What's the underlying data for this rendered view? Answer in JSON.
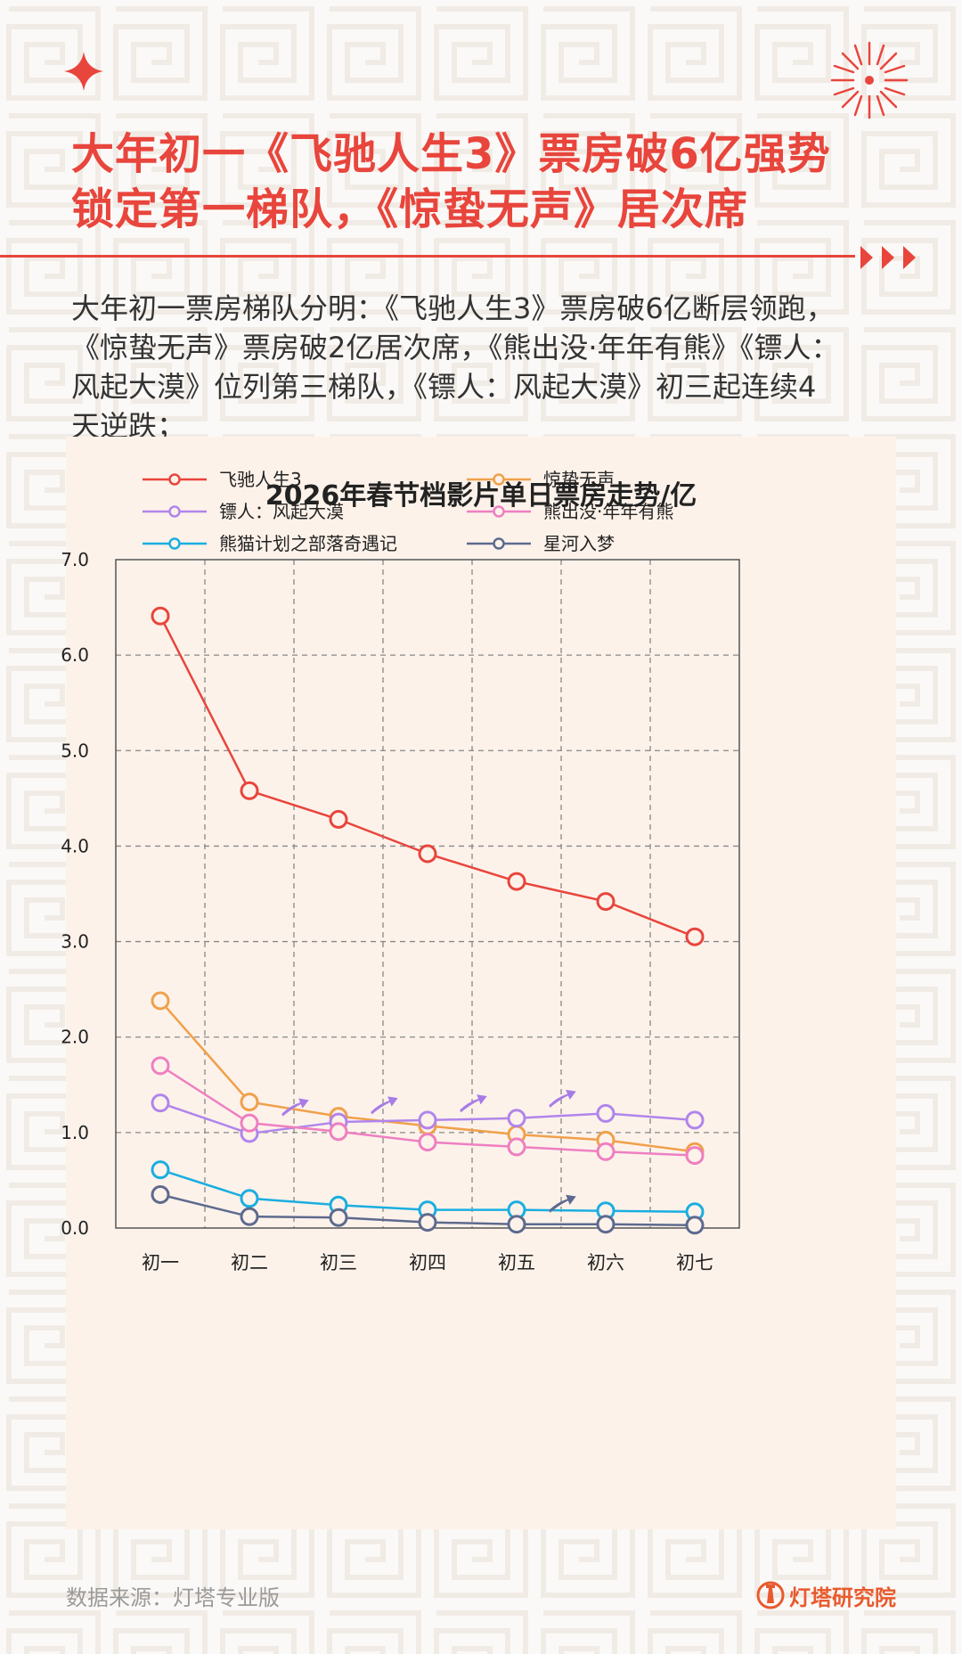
{
  "header": {
    "title_line1": "大年初一《飞驰人生3》票房破6亿强势",
    "title_line2": "锁定第一梯队，《惊蛰无声》居次席"
  },
  "summary": {
    "line1": "大年初一票房梯队分明：《飞驰人生3》票房破6亿断层领跑，",
    "line2": "《惊蛰无声》票房破2亿居次席，《熊出没·年年有熊》《镖人：",
    "line3": "风起大漠》位列第三梯队，《镖人：风起大漠》初三起连续4",
    "line4": "天逆跌；"
  },
  "footer": {
    "source": "数据来源：灯塔专业版",
    "brand": "灯塔研究院"
  },
  "colors": {
    "accent": "#e8453c",
    "chart_background": "#fdf2ea",
    "grid": "#888888",
    "trend_arrow": "#a77ce6"
  },
  "icons": [
    "sparkle-icon",
    "firework-icon",
    "triple-arrow-icon",
    "lighthouse-logo-icon"
  ],
  "chart_data": {
    "type": "line",
    "title": "2026年春节档影片单日票房走势/亿",
    "xlabel": "",
    "ylabel": "",
    "categories": [
      "初一",
      "初二",
      "初三",
      "初四",
      "初五",
      "初六",
      "初七"
    ],
    "ylim": [
      0,
      7
    ],
    "yticks": [
      "0.0",
      "1.0",
      "2.0",
      "3.0",
      "4.0",
      "5.0",
      "6.0",
      "7.0"
    ],
    "grid": true,
    "legend_position": "top",
    "series": [
      {
        "name": "飞驰人生3",
        "color": "#e8453c",
        "values": [
          6.41,
          4.58,
          4.28,
          3.92,
          3.63,
          3.42,
          3.05
        ]
      },
      {
        "name": "惊蛰无声",
        "color": "#f0a04b",
        "values": [
          2.38,
          1.32,
          1.17,
          1.07,
          0.98,
          0.92,
          0.8
        ]
      },
      {
        "name": "镖人：风起大漠",
        "color": "#b085eb",
        "values": [
          1.31,
          0.99,
          1.11,
          1.13,
          1.15,
          1.2,
          1.13
        ]
      },
      {
        "name": "熊出没·年年有熊",
        "color": "#ee7fc1",
        "values": [
          1.7,
          1.1,
          1.01,
          0.9,
          0.85,
          0.8,
          0.76
        ]
      },
      {
        "name": "熊猫计划之部落奇遇记",
        "color": "#1aaee0",
        "values": [
          0.61,
          0.31,
          0.24,
          0.19,
          0.19,
          0.18,
          0.17
        ]
      },
      {
        "name": "星河入梦",
        "color": "#5d6a8e",
        "values": [
          0.35,
          0.12,
          0.11,
          0.06,
          0.04,
          0.04,
          0.03
        ]
      }
    ]
  }
}
